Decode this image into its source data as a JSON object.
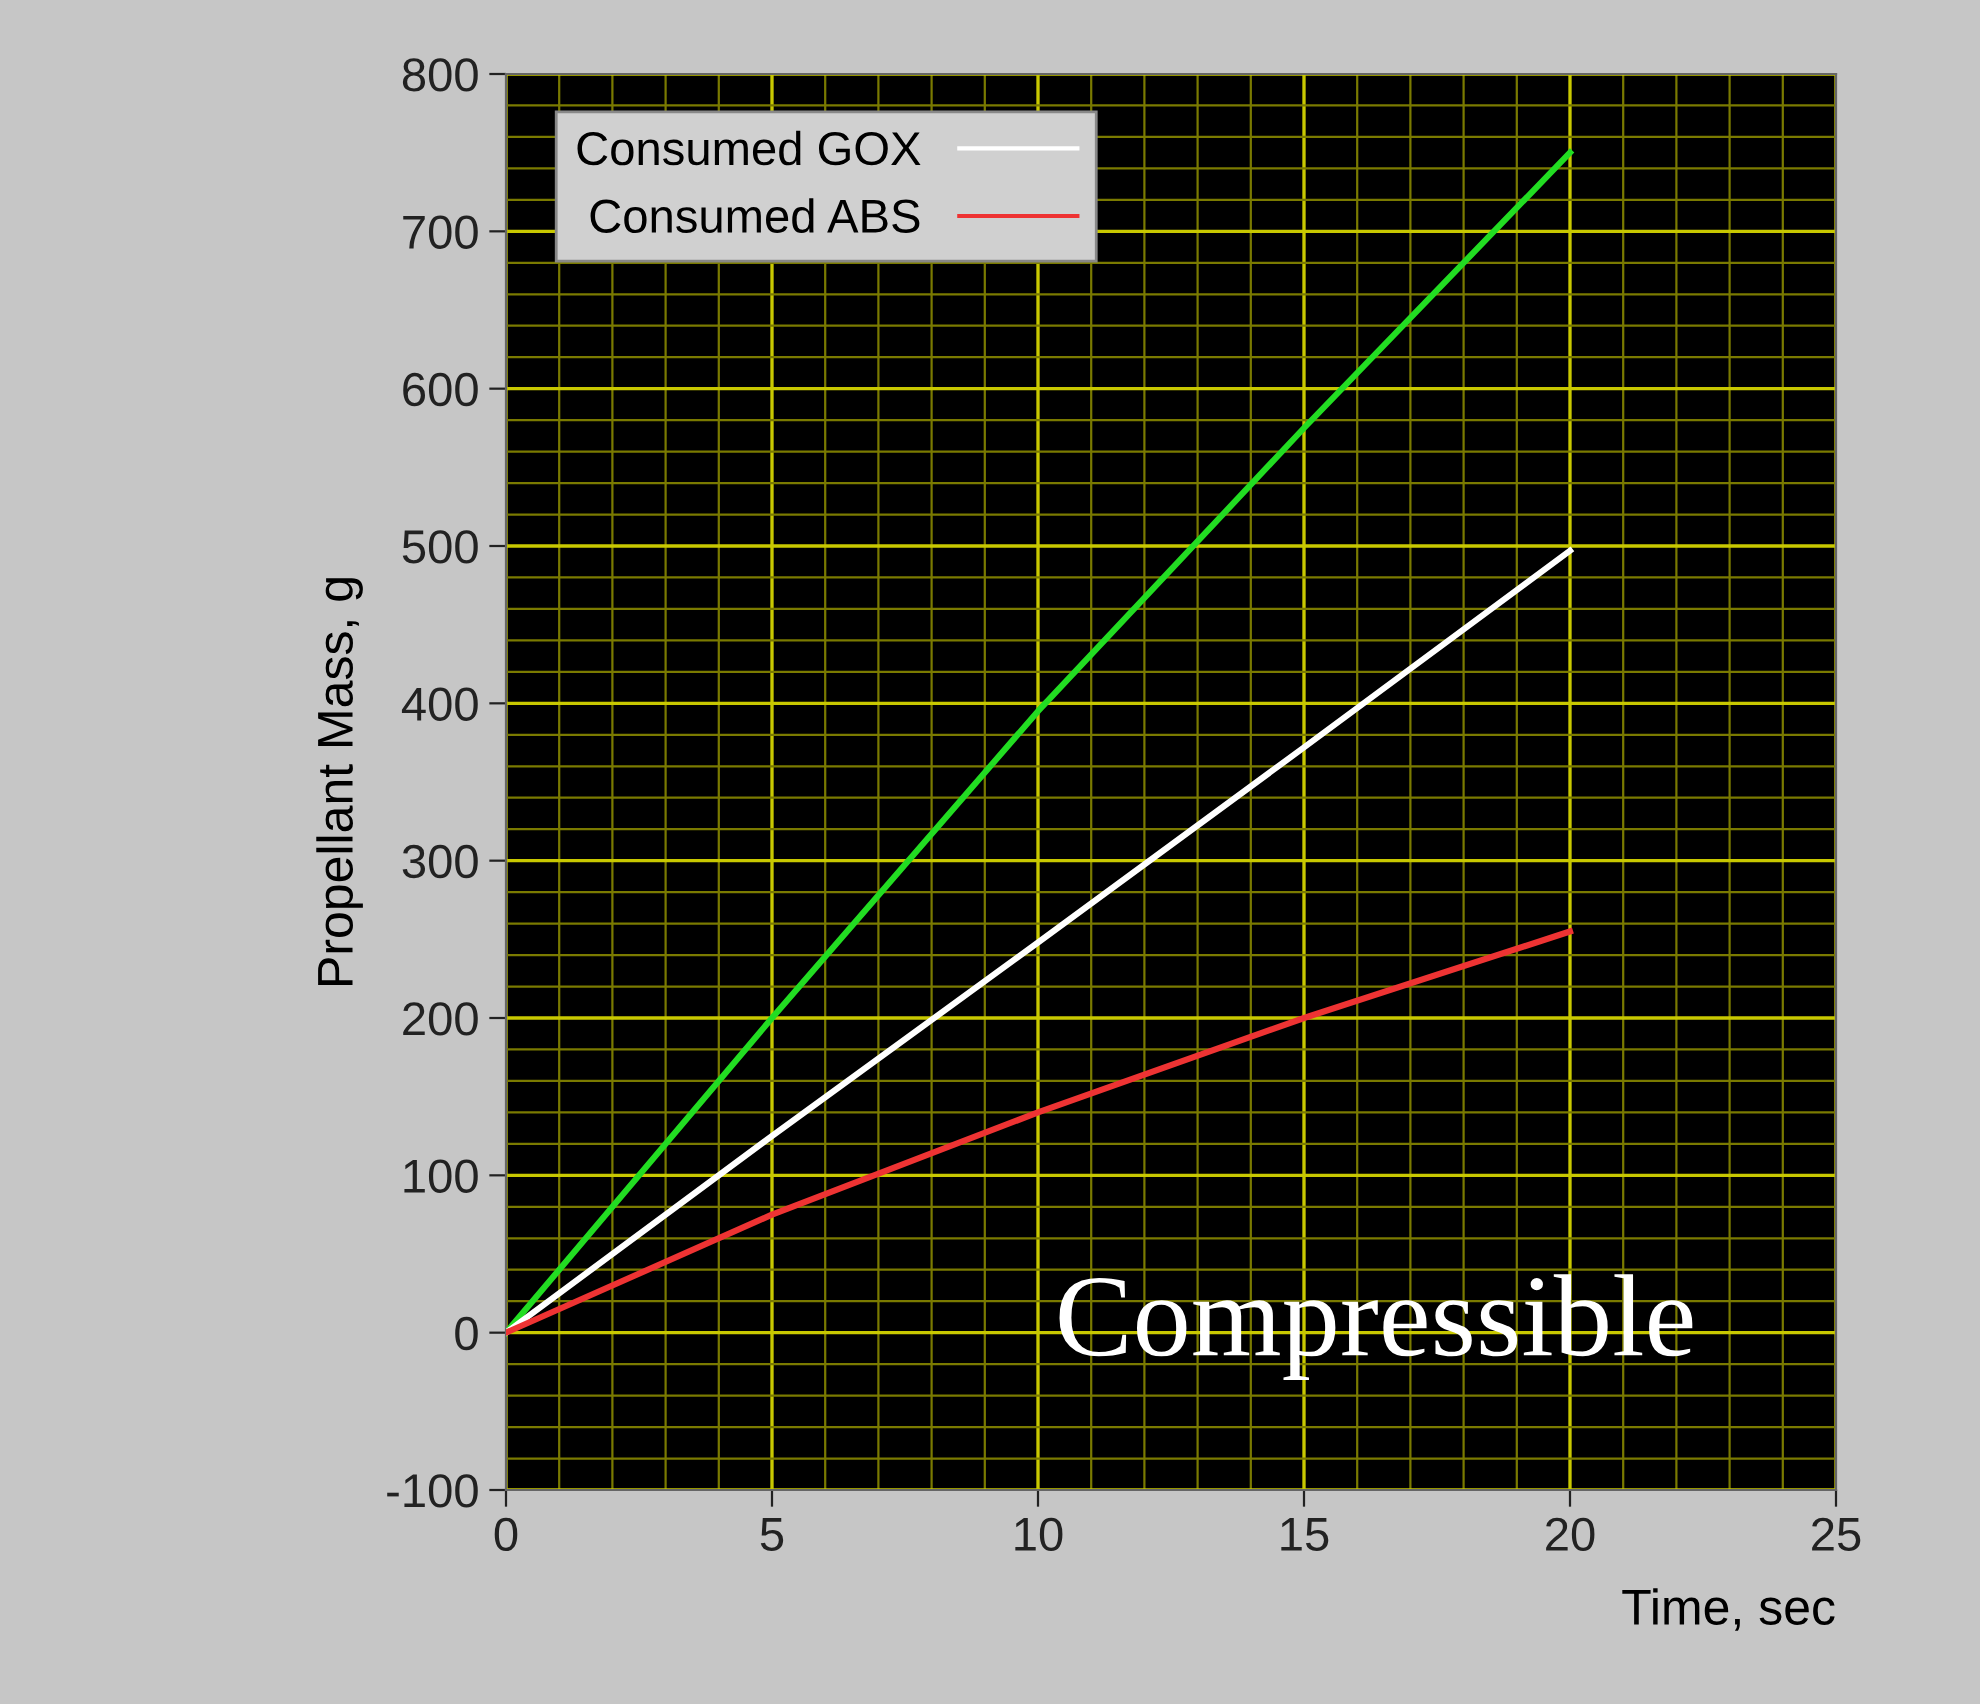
{
  "chart_data": {
    "type": "line",
    "xlabel": "Time, sec",
    "ylabel": "Propellant Mass, g",
    "x": [
      0,
      5,
      10,
      15,
      20
    ],
    "series": [
      {
        "color": "#22dd22",
        "values": [
          0,
          200,
          395,
          575,
          750
        ]
      },
      {
        "name": "Consumed GOX",
        "color": "#ffffff",
        "values": [
          0,
          125,
          248,
          372,
          497
        ]
      },
      {
        "name": "Consumed ABS",
        "color": "#ee3333",
        "values": [
          0,
          75,
          140,
          200,
          255
        ]
      }
    ],
    "xlim": [
      0,
      25
    ],
    "xticks": [
      0,
      {
        "value": 1,
        "label": null
      },
      {
        "value": 2,
        "label": null
      },
      {
        "value": 3,
        "label": null
      },
      {
        "value": 4,
        "label": null
      },
      5,
      {
        "value": 6,
        "label": null
      },
      {
        "value": 7,
        "label": null
      },
      {
        "value": 8,
        "label": null
      },
      {
        "value": 9,
        "label": null
      },
      10,
      {
        "value": 11,
        "label": null
      },
      {
        "value": 12,
        "label": null
      },
      {
        "value": 13,
        "label": null
      },
      {
        "value": 14,
        "label": null
      },
      15,
      {
        "value": 16,
        "label": null
      },
      {
        "value": 17,
        "label": null
      },
      {
        "value": 18,
        "label": null
      },
      {
        "value": 19,
        "label": null
      },
      20,
      {
        "value": 21,
        "label": null
      },
      {
        "value": 22,
        "label": null
      },
      {
        "value": 23,
        "label": null
      },
      {
        "value": 24,
        "label": null
      },
      25
    ],
    "ylim": [
      -100,
      800
    ],
    "yticks": [
      -100,
      {
        "value": -80,
        "label": null
      },
      {
        "value": -60,
        "label": null
      },
      {
        "value": -40,
        "label": null
      },
      {
        "value": -20,
        "label": null
      },
      0,
      {
        "value": 20,
        "label": null
      },
      {
        "value": 40,
        "label": null
      },
      {
        "value": 60,
        "label": null
      },
      {
        "value": 80,
        "label": null
      },
      100,
      {
        "value": 120,
        "label": null
      },
      {
        "value": 140,
        "label": null
      },
      {
        "value": 160,
        "label": null
      },
      {
        "value": 180,
        "label": null
      },
      200,
      {
        "value": 220,
        "label": null
      },
      {
        "value": 240,
        "label": null
      },
      {
        "value": 260,
        "label": null
      },
      {
        "value": 280,
        "label": null
      },
      300,
      {
        "value": 320,
        "label": null
      },
      {
        "value": 340,
        "label": null
      },
      {
        "value": 360,
        "label": null
      },
      {
        "value": 380,
        "label": null
      },
      400,
      {
        "value": 420,
        "label": null
      },
      {
        "value": 440,
        "label": null
      },
      {
        "value": 460,
        "label": null
      },
      {
        "value": 480,
        "label": null
      },
      500,
      {
        "value": 520,
        "label": null
      },
      {
        "value": 540,
        "label": null
      },
      {
        "value": 560,
        "label": null
      },
      {
        "value": 580,
        "label": null
      },
      600,
      {
        "value": 620,
        "label": null
      },
      {
        "value": 640,
        "label": null
      },
      {
        "value": 660,
        "label": null
      },
      {
        "value": 680,
        "label": null
      },
      700,
      {
        "value": 720,
        "label": null
      },
      {
        "value": 740,
        "label": null
      },
      {
        "value": 760,
        "label": null
      },
      {
        "value": 780,
        "label": null
      },
      800
    ],
    "grid": true,
    "legend": "top left",
    "annotations": [
      "Compressible"
    ]
  }
}
